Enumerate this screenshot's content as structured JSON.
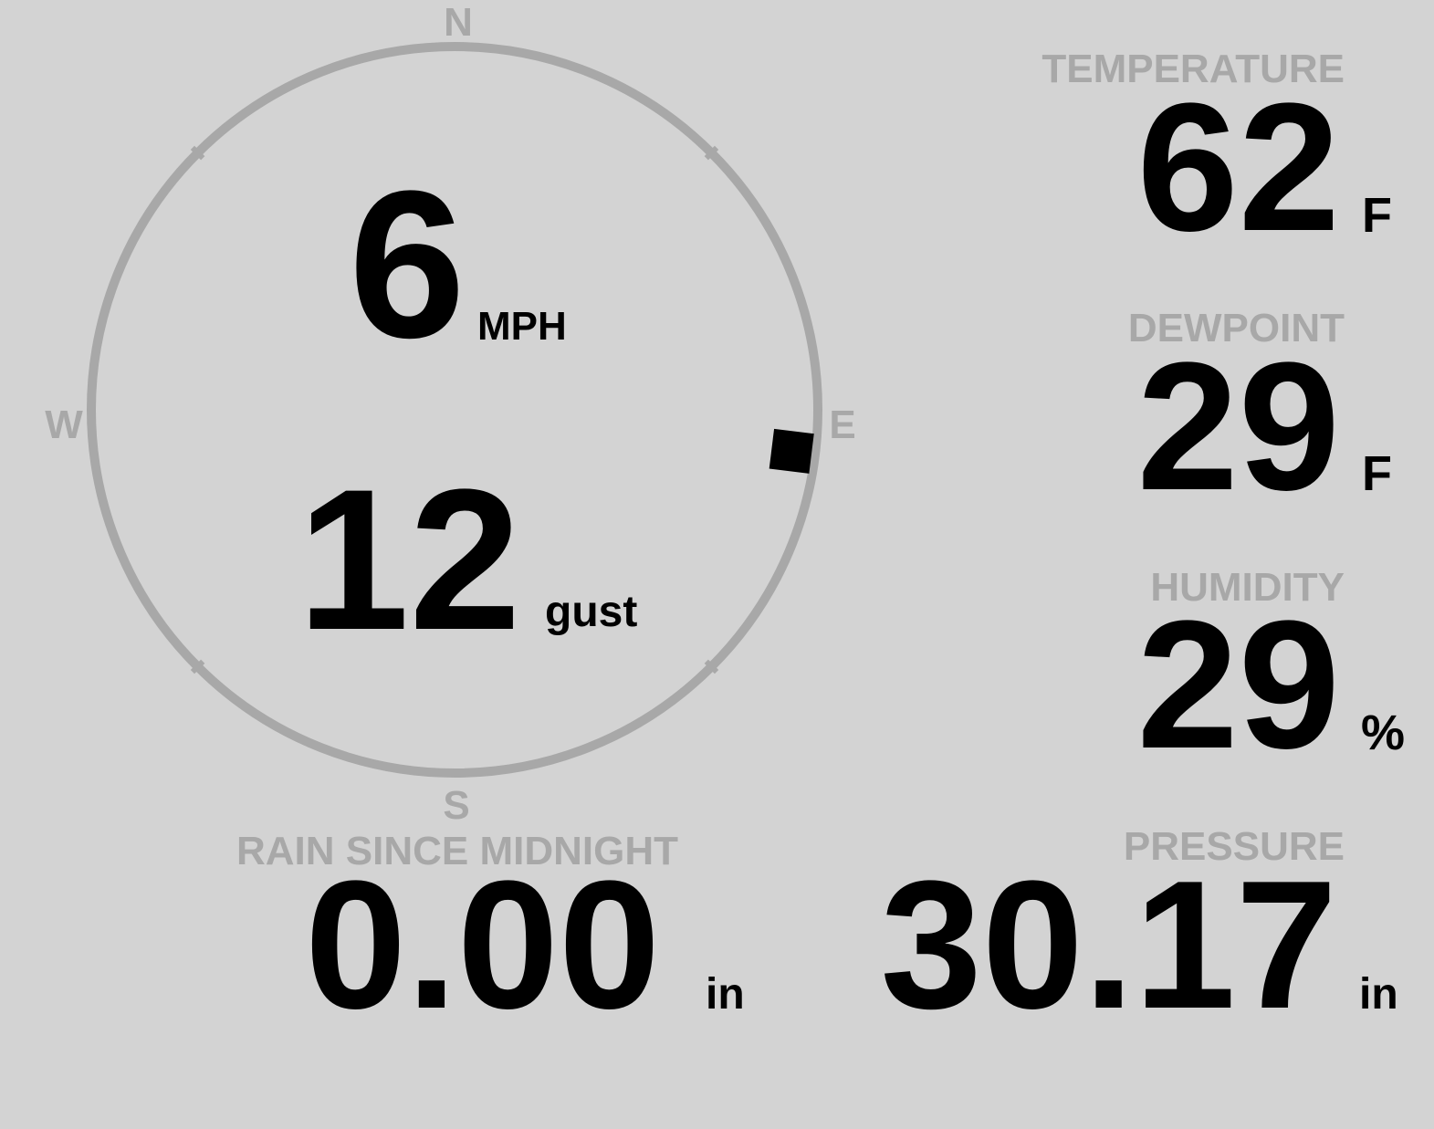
{
  "wind": {
    "compass": {
      "north": "N",
      "east": "E",
      "south": "S",
      "west": "W"
    },
    "speed": "6",
    "speed_unit": "MPH",
    "gust": "12",
    "gust_unit": "gust",
    "direction_degrees": 97
  },
  "temperature": {
    "label": "TEMPERATURE",
    "value": "62",
    "unit": "F"
  },
  "dewpoint": {
    "label": "DEWPOINT",
    "value": "29",
    "unit": "F"
  },
  "humidity": {
    "label": "HUMIDITY",
    "value": "29",
    "unit": "%"
  },
  "rain": {
    "label": "RAIN SINCE MIDNIGHT",
    "value": "0.00",
    "unit": "in"
  },
  "pressure": {
    "label": "PRESSURE",
    "value": "30.17",
    "unit": "in"
  },
  "colors": {
    "background": "#d3d3d3",
    "label": "#a8a8a8",
    "value": "#000000",
    "ring": "#a8a8a8"
  }
}
